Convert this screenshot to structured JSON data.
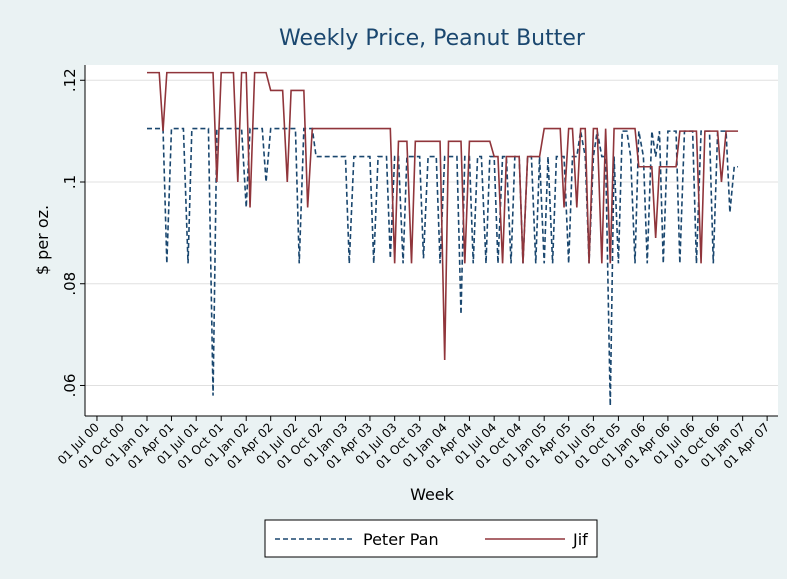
{
  "chart_data": {
    "type": "line",
    "title": "Weekly Price, Peanut Butter",
    "x_label": "Week",
    "y_label": "$ per oz.",
    "xlim": [
      "2000-05-18",
      "2007-05-11"
    ],
    "ylim": [
      0.054,
      0.123
    ],
    "yticks": [
      {
        "value": 0.06,
        "label": ".06"
      },
      {
        "value": 0.08,
        "label": ".08"
      },
      {
        "value": 0.1,
        "label": ".1"
      },
      {
        "value": 0.12,
        "label": ".12"
      }
    ],
    "xticks": [
      {
        "value": "2000-07-01",
        "label": "01 Jul 00"
      },
      {
        "value": "2000-10-01",
        "label": "01 Oct 00"
      },
      {
        "value": "2001-01-01",
        "label": "01 Jan 01"
      },
      {
        "value": "2001-04-01",
        "label": "01 Apr 01"
      },
      {
        "value": "2001-07-01",
        "label": "01 Jul 01"
      },
      {
        "value": "2001-10-01",
        "label": "01 Oct 01"
      },
      {
        "value": "2002-01-01",
        "label": "01 Jan 02"
      },
      {
        "value": "2002-04-01",
        "label": "01 Apr 02"
      },
      {
        "value": "2002-07-01",
        "label": "01 Jul 02"
      },
      {
        "value": "2002-10-01",
        "label": "01 Oct 02"
      },
      {
        "value": "2003-01-01",
        "label": "01 Jan 03"
      },
      {
        "value": "2003-04-01",
        "label": "01 Apr 03"
      },
      {
        "value": "2003-07-01",
        "label": "01 Jul 03"
      },
      {
        "value": "2003-10-01",
        "label": "01 Oct 03"
      },
      {
        "value": "2004-01-01",
        "label": "01 Jan 04"
      },
      {
        "value": "2004-04-01",
        "label": "01 Apr 04"
      },
      {
        "value": "2004-07-01",
        "label": "01 Jul 04"
      },
      {
        "value": "2004-10-01",
        "label": "01 Oct 04"
      },
      {
        "value": "2005-01-01",
        "label": "01 Jan 05"
      },
      {
        "value": "2005-04-01",
        "label": "01 Apr 05"
      },
      {
        "value": "2005-07-01",
        "label": "01 Jul 05"
      },
      {
        "value": "2005-10-01",
        "label": "01 Oct 05"
      },
      {
        "value": "2006-01-01",
        "label": "01 Jan 06"
      },
      {
        "value": "2006-04-01",
        "label": "01 Apr 06"
      },
      {
        "value": "2006-07-01",
        "label": "01 Jul 06"
      },
      {
        "value": "2006-10-01",
        "label": "01 Oct 06"
      },
      {
        "value": "2007-01-01",
        "label": "01 Jan 07"
      },
      {
        "value": "2007-04-01",
        "label": "01 Apr 07"
      }
    ],
    "grid": true,
    "legend": "bottom",
    "x": [
      "2001-01-01",
      "2001-01-15",
      "2001-02-01",
      "2001-02-15",
      "2001-03-01",
      "2001-03-15",
      "2001-04-01",
      "2001-04-15",
      "2001-05-01",
      "2001-05-15",
      "2001-06-01",
      "2001-06-15",
      "2001-07-01",
      "2001-07-15",
      "2001-08-01",
      "2001-08-15",
      "2001-09-01",
      "2001-09-15",
      "2001-10-01",
      "2001-10-15",
      "2001-11-01",
      "2001-11-15",
      "2001-12-01",
      "2001-12-15",
      "2002-01-01",
      "2002-01-15",
      "2002-02-01",
      "2002-02-15",
      "2002-03-01",
      "2002-03-15",
      "2002-04-01",
      "2002-04-15",
      "2002-05-01",
      "2002-05-15",
      "2002-06-01",
      "2002-06-15",
      "2002-07-01",
      "2002-07-15",
      "2002-08-01",
      "2002-08-15",
      "2002-09-01",
      "2002-09-15",
      "2002-10-01",
      "2002-10-15",
      "2002-11-01",
      "2002-11-15",
      "2002-12-01",
      "2002-12-15",
      "2003-01-01",
      "2003-01-15",
      "2003-02-01",
      "2003-02-15",
      "2003-03-01",
      "2003-03-15",
      "2003-04-01",
      "2003-04-15",
      "2003-05-01",
      "2003-05-15",
      "2003-06-01",
      "2003-06-15",
      "2003-07-01",
      "2003-07-15",
      "2003-08-01",
      "2003-08-15",
      "2003-09-01",
      "2003-09-15",
      "2003-10-01",
      "2003-10-15",
      "2003-11-01",
      "2003-11-15",
      "2003-12-01",
      "2003-12-15",
      "2004-01-01",
      "2004-01-15",
      "2004-02-01",
      "2004-02-15",
      "2004-03-01",
      "2004-03-15",
      "2004-04-01",
      "2004-04-15",
      "2004-05-01",
      "2004-05-15",
      "2004-06-01",
      "2004-06-15",
      "2004-07-01",
      "2004-07-15",
      "2004-08-01",
      "2004-08-15",
      "2004-09-01",
      "2004-09-15",
      "2004-10-01",
      "2004-10-15",
      "2004-11-01",
      "2004-11-15",
      "2004-12-01",
      "2004-12-15",
      "2005-01-01",
      "2005-01-15",
      "2005-02-01",
      "2005-02-15",
      "2005-03-01",
      "2005-03-15",
      "2005-04-01",
      "2005-04-15",
      "2005-05-01",
      "2005-05-15",
      "2005-06-01",
      "2005-06-15",
      "2005-07-01",
      "2005-07-15",
      "2005-08-01",
      "2005-08-15",
      "2005-09-01",
      "2005-09-15",
      "2005-10-01",
      "2005-10-15",
      "2005-11-01",
      "2005-11-15",
      "2005-12-01",
      "2005-12-15",
      "2006-01-01",
      "2006-01-15",
      "2006-02-01",
      "2006-02-15",
      "2006-03-01",
      "2006-03-15",
      "2006-04-01",
      "2006-04-15",
      "2006-05-01",
      "2006-05-15",
      "2006-06-01",
      "2006-06-15",
      "2006-07-01",
      "2006-07-15",
      "2006-08-01",
      "2006-08-15",
      "2006-09-01",
      "2006-09-15",
      "2006-10-01",
      "2006-10-15",
      "2006-11-01",
      "2006-11-15",
      "2006-12-01",
      "2006-12-15"
    ],
    "series": [
      {
        "name": "Peter Pan",
        "color": "#1a476f",
        "dash": true,
        "values": [
          0.1105,
          0.1105,
          0.1105,
          0.1105,
          0.1105,
          0.084,
          0.1105,
          0.1105,
          0.1105,
          0.1105,
          0.084,
          0.1105,
          0.1105,
          0.1105,
          0.1105,
          0.1105,
          0.058,
          0.1105,
          0.1105,
          0.1105,
          0.1105,
          0.1105,
          0.1105,
          0.1105,
          0.095,
          0.1105,
          0.1105,
          0.1105,
          0.1105,
          0.1,
          0.1105,
          0.1105,
          0.1105,
          0.1105,
          0.1105,
          0.1105,
          0.1105,
          0.084,
          0.1105,
          0.1105,
          0.1105,
          0.105,
          0.105,
          0.105,
          0.105,
          0.105,
          0.105,
          0.105,
          0.105,
          0.084,
          0.105,
          0.105,
          0.105,
          0.105,
          0.105,
          0.084,
          0.105,
          0.105,
          0.105,
          0.085,
          0.105,
          0.105,
          0.084,
          0.105,
          0.105,
          0.105,
          0.105,
          0.085,
          0.105,
          0.105,
          0.105,
          0.084,
          0.105,
          0.105,
          0.105,
          0.105,
          0.074,
          0.105,
          0.105,
          0.084,
          0.105,
          0.105,
          0.084,
          0.105,
          0.105,
          0.084,
          0.105,
          0.105,
          0.084,
          0.105,
          0.105,
          0.084,
          0.105,
          0.105,
          0.084,
          0.105,
          0.084,
          0.105,
          0.084,
          0.105,
          0.105,
          0.105,
          0.084,
          0.105,
          0.105,
          0.11,
          0.105,
          0.084,
          0.105,
          0.11,
          0.105,
          0.105,
          0.056,
          0.105,
          0.084,
          0.11,
          0.11,
          0.105,
          0.084,
          0.11,
          0.105,
          0.084,
          0.11,
          0.105,
          0.11,
          0.084,
          0.11,
          0.11,
          0.11,
          0.084,
          0.11,
          0.11,
          0.11,
          0.084,
          0.11,
          0.11,
          0.11,
          0.084,
          0.11,
          0.11,
          0.11,
          0.094,
          0.103,
          0.103
        ]
      },
      {
        "name": "Jif",
        "color": "#90353b",
        "dash": false,
        "values": [
          0.1215,
          0.1215,
          0.1215,
          0.1215,
          0.11,
          0.1215,
          0.1215,
          0.1215,
          0.1215,
          0.1215,
          0.1215,
          0.1215,
          0.1215,
          0.1215,
          0.1215,
          0.1215,
          0.1215,
          0.1,
          0.1215,
          0.1215,
          0.1215,
          0.1215,
          0.1,
          0.1215,
          0.1215,
          0.095,
          0.1215,
          0.1215,
          0.1215,
          0.1215,
          0.118,
          0.118,
          0.118,
          0.118,
          0.1,
          0.118,
          0.118,
          0.118,
          0.118,
          0.095,
          0.1105,
          0.1105,
          0.1105,
          0.1105,
          0.1105,
          0.1105,
          0.1105,
          0.1105,
          0.1105,
          0.1105,
          0.1105,
          0.1105,
          0.1105,
          0.1105,
          0.1105,
          0.1105,
          0.1105,
          0.1105,
          0.1105,
          0.1105,
          0.084,
          0.108,
          0.108,
          0.108,
          0.084,
          0.108,
          0.108,
          0.108,
          0.108,
          0.108,
          0.108,
          0.108,
          0.065,
          0.108,
          0.108,
          0.108,
          0.108,
          0.084,
          0.108,
          0.108,
          0.108,
          0.108,
          0.108,
          0.108,
          0.105,
          0.105,
          0.084,
          0.105,
          0.105,
          0.105,
          0.105,
          0.084,
          0.105,
          0.105,
          0.105,
          0.105,
          0.1105,
          0.1105,
          0.1105,
          0.1105,
          0.1105,
          0.095,
          0.1105,
          0.1105,
          0.095,
          0.1105,
          0.1105,
          0.084,
          0.1105,
          0.1105,
          0.084,
          0.1105,
          0.084,
          0.1105,
          0.1105,
          0.1105,
          0.1105,
          0.1105,
          0.1105,
          0.103,
          0.103,
          0.103,
          0.103,
          0.089,
          0.103,
          0.103,
          0.103,
          0.103,
          0.103,
          0.11,
          0.11,
          0.11,
          0.11,
          0.11,
          0.084,
          0.11,
          0.11,
          0.11,
          0.11,
          0.1,
          0.11,
          0.11,
          0.11,
          0.11
        ]
      }
    ]
  }
}
